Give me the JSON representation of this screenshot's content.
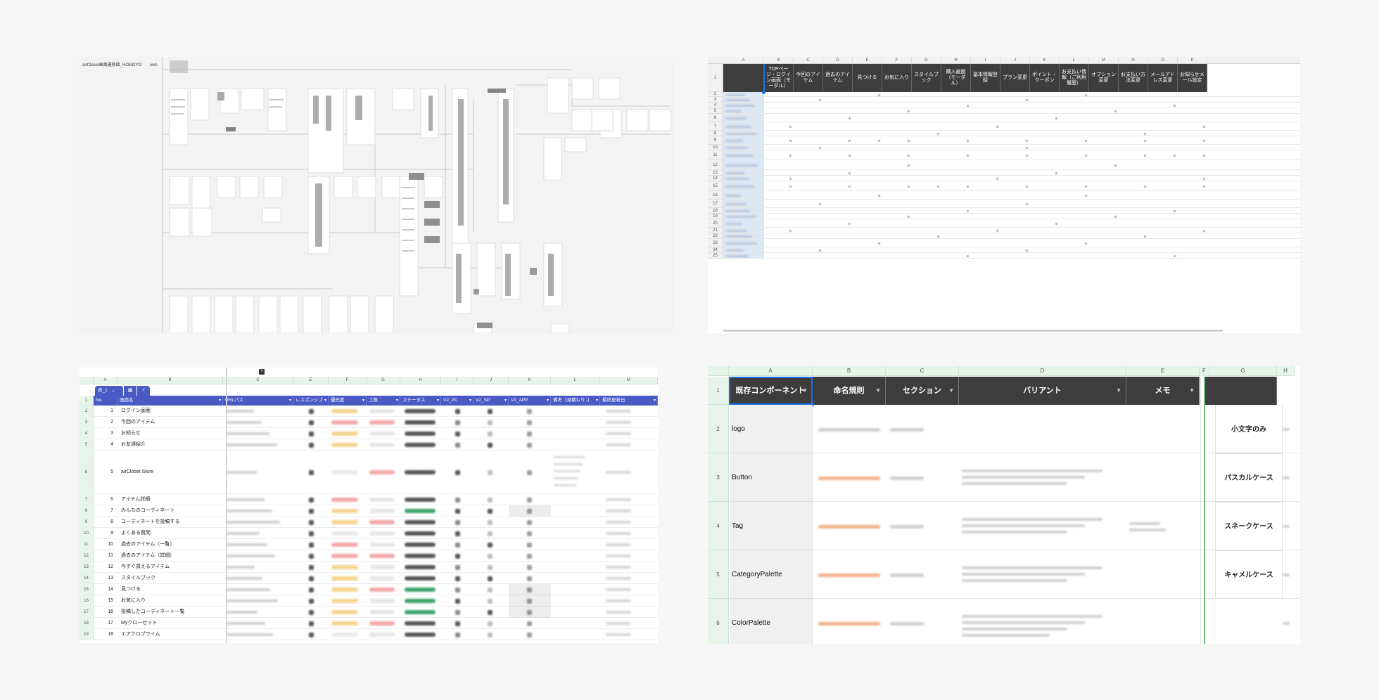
{
  "sitemap": {
    "doc_title": "airCloset画面遷移図_HOGOYO",
    "doc_tag": "web"
  },
  "matrix": {
    "col_letters": [
      "A",
      "B",
      "C",
      "D",
      "E",
      "F",
      "G",
      "H",
      "I",
      "J",
      "K",
      "L",
      "M",
      "N",
      "O",
      "P"
    ],
    "headers": [
      "",
      "TOPページ・ログイン画面（モーダル）",
      "今回のアイテム",
      "過去のアイテム",
      "見つける",
      "お気に入り",
      "スタイルブック",
      "購入画面（モーダル）",
      "基本情報登録",
      "プラン変更",
      "ポイント・クーポン",
      "お支払い情報（ご利用履歴）",
      "オプション変更",
      "お支払い方法変更",
      "メールアドレス変更",
      "お知らせメール設定"
    ],
    "row_numbers": [
      "1",
      "2",
      "3",
      "4",
      "5",
      "6",
      "7",
      "8",
      "9",
      "10",
      "11",
      "12",
      "13",
      "14",
      "15",
      "16",
      "17",
      "18",
      "19",
      "20",
      "21",
      "22",
      "23",
      "24",
      "25"
    ]
  },
  "screens": {
    "col_letters": [
      "A",
      "B",
      "C",
      "E",
      "F",
      "G",
      "H",
      "I",
      "J",
      "K",
      "L",
      "M"
    ],
    "sheet_tab": "表_1",
    "headers": [
      "No.",
      "画面名",
      "URLパス",
      "レスポンシブ",
      "優先度",
      "工数",
      "ステータス",
      "V2_PC",
      "V2_SP",
      "V2_APP",
      "備考（見積もりコ",
      "最終更新日"
    ],
    "rows": [
      {
        "rn": "2",
        "no": "1",
        "name": "ログイン画面"
      },
      {
        "rn": "3",
        "no": "2",
        "name": "今回のアイテム"
      },
      {
        "rn": "4",
        "no": "3",
        "name": "お知らせ"
      },
      {
        "rn": "5",
        "no": "4",
        "name": "お友達紹介"
      },
      {
        "rn": "6",
        "no": "5",
        "name": "airCloset Store"
      },
      {
        "rn": "7",
        "no": "6",
        "name": "アイテム詳細"
      },
      {
        "rn": "8",
        "no": "7",
        "name": "みんなのコーディネート"
      },
      {
        "rn": "9",
        "no": "8",
        "name": "コーディネートを投稿する"
      },
      {
        "rn": "10",
        "no": "9",
        "name": "よくある質問"
      },
      {
        "rn": "11",
        "no": "10",
        "name": "過去のアイテム（一覧）"
      },
      {
        "rn": "12",
        "no": "11",
        "name": "過去のアイテム（詳細）"
      },
      {
        "rn": "13",
        "no": "12",
        "name": "今すぐ買えるアイテム"
      },
      {
        "rn": "14",
        "no": "13",
        "name": "スタイルブック"
      },
      {
        "rn": "15",
        "no": "14",
        "name": "見つける"
      },
      {
        "rn": "16",
        "no": "15",
        "name": "お気に入り"
      },
      {
        "rn": "17",
        "no": "16",
        "name": "投稿したコーディネート一覧"
      },
      {
        "rn": "18",
        "no": "17",
        "name": "Myクローゼット"
      },
      {
        "rn": "19",
        "no": "18",
        "name": "エアクロプライム"
      }
    ]
  },
  "components": {
    "col_letters": [
      "A",
      "B",
      "C",
      "D",
      "E",
      "F",
      "G",
      "H"
    ],
    "headers": [
      "既存コンポーネント",
      "命名規則",
      "セクション",
      "バリアント",
      "メモ"
    ],
    "rows": [
      {
        "rn": "2",
        "name": "logo"
      },
      {
        "rn": "3",
        "name": "Button"
      },
      {
        "rn": "4",
        "name": "Tag"
      },
      {
        "rn": "5",
        "name": "CategoryPalette"
      },
      {
        "rn": "6",
        "name": "ColorPalette"
      }
    ],
    "header_row_num": "1",
    "naming_cases": [
      "小文字のみ",
      "パスカルケース",
      "スネークケース",
      "キャメルケース"
    ]
  }
}
